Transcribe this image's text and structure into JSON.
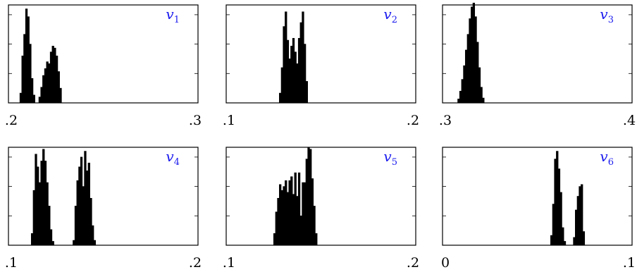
{
  "colors": {
    "bar": "#000000",
    "frame": "#000000",
    "label": "#1a1aee"
  },
  "chart_data": [
    {
      "type": "bar",
      "name": "v1",
      "label_var": "v",
      "label_sub": "1",
      "xlim": [
        0.2,
        0.3
      ],
      "xticklabels": [
        ".2",
        ".3"
      ],
      "ylim": [
        0,
        10
      ],
      "yticks": [
        3,
        6,
        9
      ],
      "x": [
        0.2065,
        0.2075,
        0.2085,
        0.2095,
        0.2105,
        0.2115,
        0.2125,
        0.2135,
        0.2145,
        0.2155,
        0.2165,
        0.2175,
        0.2185,
        0.2195,
        0.2205,
        0.2215,
        0.2225,
        0.2235,
        0.2245,
        0.2255,
        0.2265,
        0.2275
      ],
      "values": [
        1.0,
        4.8,
        7.0,
        9.6,
        8.8,
        6.0,
        2.5,
        0.8,
        0,
        0,
        0.6,
        1.6,
        2.8,
        3.5,
        4.2,
        4.0,
        5.2,
        5.8,
        5.6,
        4.8,
        3.2,
        1.5
      ]
    },
    {
      "type": "bar",
      "name": "v2",
      "label_var": "v",
      "label_sub": "2",
      "xlim": [
        0.1,
        0.2
      ],
      "xticklabels": [
        ".1",
        ".2"
      ],
      "ylim": [
        0,
        10
      ],
      "yticks": [
        3,
        6,
        9
      ],
      "x": [
        0.1285,
        0.1295,
        0.1305,
        0.1315,
        0.1325,
        0.1335,
        0.1345,
        0.1355,
        0.1365,
        0.1375,
        0.1385,
        0.1395,
        0.1405,
        0.1415,
        0.1425
      ],
      "values": [
        1.0,
        3.6,
        7.8,
        9.3,
        6.4,
        4.5,
        5.8,
        6.6,
        5.2,
        4.0,
        6.6,
        8.2,
        9.3,
        6.0,
        2.2
      ]
    },
    {
      "type": "bar",
      "name": "v3",
      "label_var": "v",
      "label_sub": "3",
      "xlim": [
        0.3,
        0.4
      ],
      "xticklabels": [
        ".3",
        ".4"
      ],
      "ylim": [
        0,
        10
      ],
      "yticks": [
        3,
        6,
        9
      ],
      "x": [
        0.3085,
        0.3095,
        0.3105,
        0.3115,
        0.3125,
        0.3135,
        0.3145,
        0.3155,
        0.3165,
        0.3175,
        0.3185,
        0.3195,
        0.3205,
        0.3215
      ],
      "values": [
        0.4,
        1.2,
        2.4,
        3.8,
        5.4,
        7.0,
        8.6,
        9.8,
        10.2,
        8.8,
        6.2,
        3.6,
        1.6,
        0.5
      ]
    },
    {
      "type": "bar",
      "name": "v4",
      "label_var": "v",
      "label_sub": "4",
      "xlim": [
        0.1,
        0.2
      ],
      "xticklabels": [
        ".1",
        ".2"
      ],
      "ylim": [
        0,
        10
      ],
      "yticks": [
        3,
        6,
        9
      ],
      "x": [
        0.1125,
        0.1135,
        0.1145,
        0.1155,
        0.1165,
        0.1175,
        0.1185,
        0.1195,
        0.1205,
        0.1215,
        0.1225,
        0.1235,
        0.1245,
        0.1255,
        0.1265,
        0.1275,
        0.1285,
        0.1295,
        0.1305,
        0.1315,
        0.1325,
        0.1335,
        0.1345,
        0.1355,
        0.1365,
        0.1375,
        0.1385,
        0.1395,
        0.1405,
        0.1415,
        0.1425,
        0.1435,
        0.1445,
        0.1455
      ],
      "values": [
        1.2,
        5.6,
        9.3,
        8.0,
        6.4,
        8.6,
        9.8,
        8.6,
        6.4,
        4.0,
        1.6,
        0.4,
        0,
        0,
        0,
        0,
        0,
        0,
        0,
        0,
        0,
        0,
        0.5,
        4.0,
        6.6,
        8.0,
        9.0,
        6.0,
        9.6,
        7.6,
        8.4,
        4.8,
        2.0,
        0.5
      ]
    },
    {
      "type": "bar",
      "name": "v5",
      "label_var": "v",
      "label_sub": "5",
      "xlim": [
        0.1,
        0.2
      ],
      "xticklabels": [
        ".1",
        ".2"
      ],
      "ylim": [
        0,
        10
      ],
      "yticks": [
        3,
        6,
        9
      ],
      "x": [
        0.1255,
        0.1265,
        0.1275,
        0.1285,
        0.1295,
        0.1305,
        0.1315,
        0.1325,
        0.1335,
        0.1345,
        0.1355,
        0.1365,
        0.1375,
        0.1385,
        0.1395,
        0.1405,
        0.1415,
        0.1425,
        0.1435,
        0.1445,
        0.1455,
        0.1465,
        0.1475
      ],
      "values": [
        1.2,
        3.4,
        4.8,
        6.2,
        5.6,
        6.0,
        6.6,
        5.4,
        6.6,
        7.0,
        5.2,
        7.4,
        5.0,
        7.4,
        3.0,
        6.4,
        6.4,
        8.8,
        10.0,
        9.8,
        6.8,
        4.0,
        1.2
      ]
    },
    {
      "type": "bar",
      "name": "v6",
      "label_var": "v",
      "label_sub": "6",
      "xlim": [
        0,
        0.1
      ],
      "xticklabels": [
        "0",
        ".1"
      ],
      "ylim": [
        0,
        10
      ],
      "yticks": [
        3,
        6,
        9
      ],
      "x": [
        0.0575,
        0.0585,
        0.0595,
        0.0605,
        0.0615,
        0.0625,
        0.0635,
        0.0645,
        0.0655,
        0.0665,
        0.0675,
        0.0685,
        0.0695,
        0.0705,
        0.0715,
        0.0725,
        0.0735,
        0.0745
      ],
      "values": [
        1.0,
        4.2,
        8.8,
        9.6,
        7.8,
        5.4,
        1.8,
        0.4,
        0,
        0,
        0,
        0,
        0.8,
        3.6,
        5.0,
        6.0,
        6.2,
        1.4
      ]
    }
  ]
}
